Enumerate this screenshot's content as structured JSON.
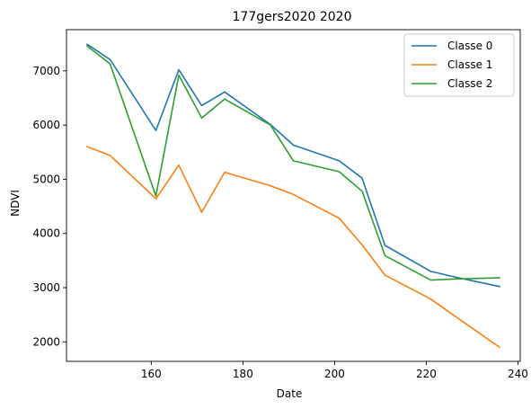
{
  "chart_data": {
    "type": "line",
    "title": "177gers2020 2020",
    "xlabel": "Date",
    "ylabel": "NDVI",
    "xlim": [
      141.5,
      240.5
    ],
    "ylim": [
      1640,
      7760
    ],
    "xticks": [
      160,
      180,
      200,
      220,
      240
    ],
    "yticks": [
      2000,
      3000,
      4000,
      5000,
      6000,
      7000
    ],
    "legend_position": "top-right",
    "grid": false,
    "series": [
      {
        "name": "Classe 0",
        "color": "#1f77b4",
        "x": [
          146,
          151,
          161,
          166,
          171,
          176,
          186,
          191,
          201,
          206,
          211,
          221,
          226,
          236
        ],
        "y": [
          7490,
          7210,
          5900,
          7020,
          6360,
          6610,
          6010,
          5630,
          5340,
          5020,
          3780,
          3300,
          3200,
          3020
        ]
      },
      {
        "name": "Classe 1",
        "color": "#ff7f0e",
        "x": [
          146,
          151,
          161,
          166,
          171,
          176,
          186,
          191,
          201,
          206,
          211,
          221,
          226,
          236
        ],
        "y": [
          5600,
          5440,
          4640,
          5260,
          4390,
          5130,
          4880,
          4720,
          4280,
          3790,
          3230,
          2790,
          2490,
          1900
        ]
      },
      {
        "name": "Classe 2",
        "color": "#2ca02c",
        "x": [
          146,
          151,
          161,
          166,
          171,
          176,
          186,
          191,
          201,
          206,
          211,
          221,
          226,
          236
        ],
        "y": [
          7460,
          7130,
          4690,
          6920,
          6130,
          6480,
          6000,
          5340,
          5140,
          4780,
          3590,
          3140,
          3160,
          3180
        ]
      }
    ]
  }
}
